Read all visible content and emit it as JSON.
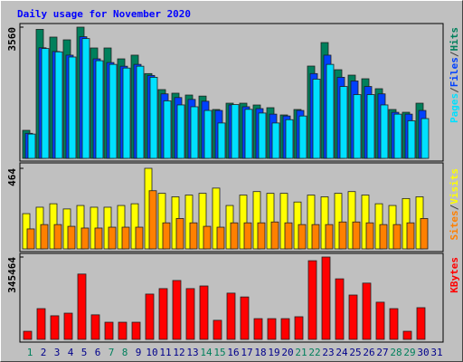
{
  "chart_data": [
    {
      "type": "bar",
      "title": "Daily usage for November 2020",
      "categories": [
        "1",
        "2",
        "3",
        "4",
        "5",
        "6",
        "7",
        "8",
        "9",
        "10",
        "11",
        "12",
        "13",
        "14",
        "15",
        "16",
        "17",
        "18",
        "19",
        "20",
        "21",
        "22",
        "23",
        "24",
        "25",
        "26",
        "27",
        "28",
        "29",
        "30",
        "31"
      ],
      "category_colors": [
        "#00805c",
        "#00008b",
        "#00008b",
        "#00008b",
        "#00008b",
        "#00008b",
        "#00805c",
        "#00805c",
        "#00008b",
        "#00008b",
        "#00008b",
        "#00008b",
        "#00008b",
        "#00805c",
        "#00805c",
        "#00008b",
        "#00008b",
        "#00008b",
        "#00008b",
        "#00008b",
        "#00805c",
        "#00805c",
        "#00008b",
        "#00008b",
        "#00008b",
        "#00008b",
        "#00008b",
        "#00805c",
        "#00805c",
        "#00008b",
        "#00008b"
      ],
      "legend_separator": "/",
      "ylim": [
        0,
        3560
      ],
      "yticks": [
        3560
      ],
      "series": [
        {
          "name": "Hits",
          "color": "#00805c",
          "values": [
            761,
            3500,
            3290,
            3216,
            3560,
            2995,
            2995,
            2700,
            2800,
            2300,
            1866,
            1768,
            1718,
            1690,
            1326,
            1497,
            1497,
            1448,
            1375,
            1178,
            1326,
            2504,
            3142,
            2405,
            2258,
            2160,
            1890,
            1326,
            1251,
            1497,
            null
          ]
        },
        {
          "name": "Files",
          "color": "#0040ff",
          "values": [
            680,
            3000,
            2900,
            2800,
            3300,
            2700,
            2600,
            2500,
            2550,
            2250,
            1750,
            1650,
            1600,
            1550,
            1300,
            1450,
            1400,
            1350,
            1200,
            1150,
            1300,
            2300,
            2800,
            2200,
            2100,
            1950,
            1750,
            1250,
            1200,
            1300,
            null
          ]
        },
        {
          "name": "Pages",
          "color": "#00e0ff",
          "values": [
            660,
            2980,
            2890,
            2750,
            3250,
            2650,
            2550,
            2450,
            2500,
            2200,
            1560,
            1450,
            1400,
            1300,
            960,
            1460,
            1330,
            1230,
            960,
            1050,
            1150,
            2150,
            2550,
            1950,
            1730,
            1730,
            1450,
            1200,
            1020,
            1080,
            null
          ]
        }
      ]
    },
    {
      "type": "bar",
      "ylim": [
        0,
        464
      ],
      "yticks": [
        464
      ],
      "series": [
        {
          "name": "Visits",
          "color": "#ffff00",
          "values": [
            203,
            240,
            260,
            230,
            250,
            240,
            240,
            250,
            260,
            464,
            320,
            300,
            310,
            320,
            350,
            250,
            310,
            330,
            320,
            320,
            270,
            310,
            300,
            320,
            330,
            310,
            260,
            250,
            290,
            300,
            null
          ]
        },
        {
          "name": "Sites",
          "color": "#ff8000",
          "values": [
            115,
            140,
            140,
            130,
            120,
            120,
            125,
            125,
            125,
            335,
            150,
            175,
            150,
            130,
            125,
            150,
            150,
            150,
            155,
            150,
            140,
            140,
            140,
            155,
            155,
            150,
            140,
            140,
            150,
            175,
            null
          ]
        }
      ]
    },
    {
      "type": "bar",
      "ylim": [
        0,
        345464
      ],
      "yticks": [
        345464
      ],
      "series": [
        {
          "name": "KBytes",
          "color": "#ff0000",
          "values": [
            34000,
            129000,
            99000,
            110000,
            274000,
            103000,
            72000,
            72000,
            72000,
            190000,
            213000,
            247000,
            213000,
            224000,
            80000,
            194000,
            178000,
            87000,
            87000,
            87000,
            95000,
            330000,
            345464,
            254000,
            186000,
            236000,
            156000,
            129000,
            34000,
            133000,
            null
          ]
        }
      ]
    }
  ]
}
